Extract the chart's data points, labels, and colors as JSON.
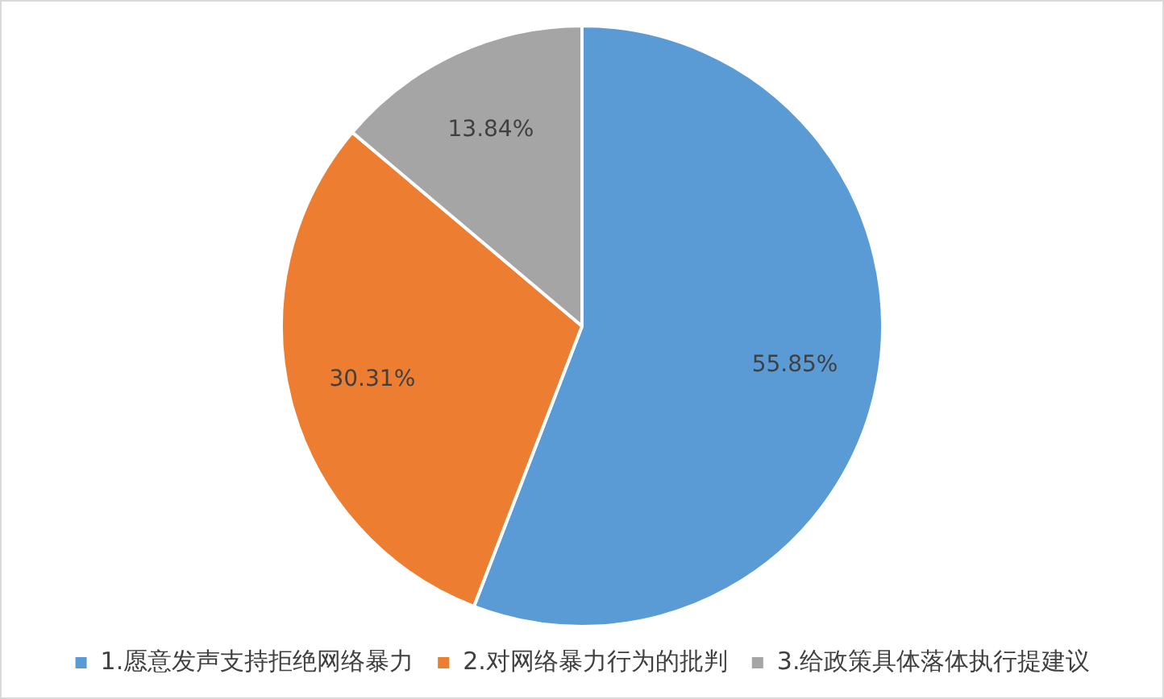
{
  "chart_data": {
    "type": "pie",
    "categories": [
      "1.愿意发声支持拒绝网络暴力",
      "2.对网络暴力行为的批判",
      "3.给政策具体落体执行提建议"
    ],
    "values": [
      55.85,
      30.31,
      13.84
    ],
    "colors": [
      "#5b9bd5",
      "#ed7d31",
      "#a5a5a5"
    ],
    "value_labels": [
      "55.85%",
      "30.31%",
      "13.84%"
    ],
    "legend": "bottom"
  }
}
